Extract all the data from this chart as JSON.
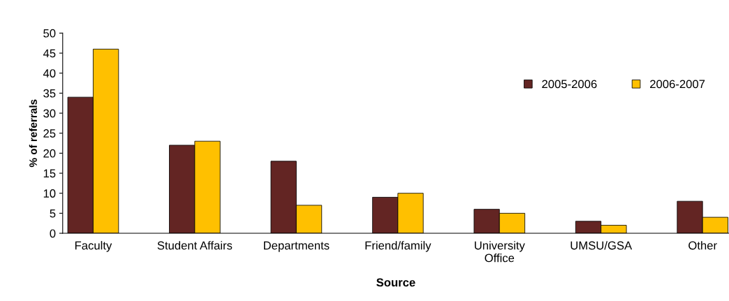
{
  "chart_data": {
    "type": "bar",
    "xlabel": "Source",
    "ylabel": "% of referrals",
    "categories": [
      "Faculty",
      "Student Affairs",
      "Departments",
      "Friend/family",
      "University\nOffice",
      "UMSU/GSA",
      "Other"
    ],
    "series": [
      {
        "name": "2005-2006",
        "color": "#632523",
        "values": [
          34,
          22,
          18,
          9,
          6,
          3,
          8
        ]
      },
      {
        "name": "2006-2007",
        "color": "#ffc000",
        "values": [
          46,
          23,
          7,
          10,
          5,
          2,
          4
        ]
      }
    ],
    "ylim": [
      0,
      50
    ],
    "yticks": [
      0,
      5,
      10,
      15,
      20,
      25,
      30,
      35,
      40,
      45,
      50
    ],
    "grid": false,
    "legend": "top right"
  }
}
